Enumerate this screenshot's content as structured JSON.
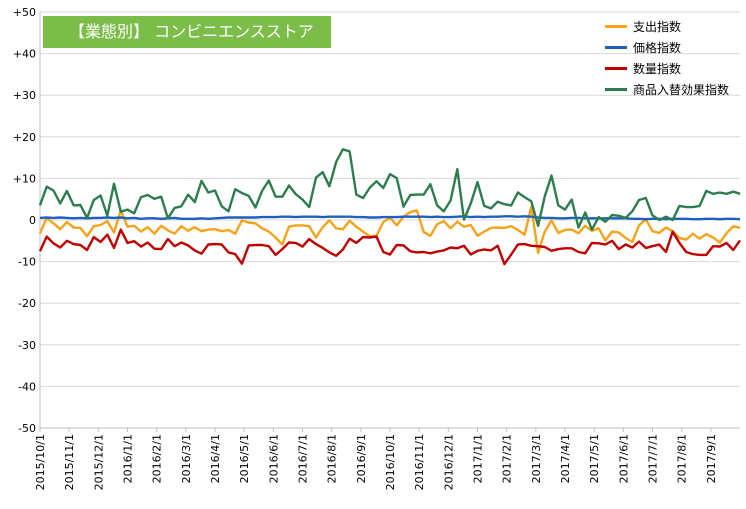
{
  "chart_data": {
    "type": "line",
    "title": "【業態別】 コンビニエンスストア",
    "xlabel": "",
    "ylabel": "",
    "ylim": [
      -50,
      50
    ],
    "y_ticks": [
      "+50",
      "+40",
      "+30",
      "+20",
      "+10",
      "0",
      "-10",
      "-20",
      "-30",
      "-40",
      "-50"
    ],
    "x_tick_labels": [
      "2015/10/1",
      "2015/11/1",
      "2015/12/1",
      "2016/1/1",
      "2016/2/1",
      "2016/3/1",
      "2016/4/1",
      "2016/5/1",
      "2016/6/1",
      "2016/7/1",
      "2016/8/1",
      "2016/9/1",
      "2016/10/1",
      "2016/11/1",
      "2016/12/1",
      "2017/1/1",
      "2017/2/1",
      "2017/3/1",
      "2017/4/1",
      "2017/5/1",
      "2017/6/1",
      "2017/7/1",
      "2017/8/1",
      "2017/9/1"
    ],
    "x_note": "weekly observations from 2015/10/1 to 2017/9/30; 105 points per series",
    "legend_position": "top-right",
    "grid": "horizontal",
    "series": [
      {
        "name": "支出指数",
        "color": "#f5a31a",
        "values": [
          -3.2,
          0.5,
          -0.8,
          -2.2,
          -0.5,
          -1.8,
          -1.9,
          -3.9,
          -1.5,
          -1.2,
          -0.3,
          -3.0,
          2.3,
          -1.6,
          -1.4,
          -2.8,
          -1.7,
          -3.3,
          -1.4,
          -2.5,
          -3.3,
          -1.5,
          -2.6,
          -1.7,
          -2.7,
          -2.3,
          -2.2,
          -2.7,
          -2.4,
          -3.3,
          -0.1,
          -0.6,
          -0.8,
          -2.0,
          -2.8,
          -4.2,
          -5.9,
          -1.6,
          -1.3,
          -1.3,
          -1.5,
          -4.2,
          -1.7,
          -0.1,
          -2.0,
          -2.2,
          -0.2,
          -1.6,
          -2.8,
          -3.9,
          -3.8,
          -0.5,
          0.6,
          -1.3,
          0.8,
          1.9,
          2.3,
          -2.9,
          -3.8,
          -1.0,
          -0.3,
          -2.0,
          -0.4,
          -1.6,
          -1.2,
          -3.8,
          -2.8,
          -1.9,
          -1.8,
          -1.9,
          -1.5,
          -2.4,
          -3.5,
          3.2,
          -7.9,
          -2.8,
          -0.1,
          -3.1,
          -2.4,
          -2.3,
          -3.2,
          -1.4,
          -2.6,
          -2.0,
          -4.9,
          -2.8,
          -3.0,
          -4.3,
          -5.3,
          -1.3,
          0.2,
          -2.7,
          -3.1,
          -1.8,
          -2.7,
          -4.3,
          -4.7,
          -3.3,
          -4.5,
          -3.4,
          -4.2,
          -5.4,
          -3.2,
          -1.5,
          -1.9
        ]
      },
      {
        "name": "価格指数",
        "color": "#1f5fbf",
        "values": [
          0.5,
          0.6,
          0.5,
          0.6,
          0.5,
          0.4,
          0.5,
          0.4,
          0.5,
          0.5,
          0.6,
          0.5,
          0.6,
          0.4,
          0.5,
          0.3,
          0.4,
          0.4,
          0.3,
          0.4,
          0.5,
          0.3,
          0.3,
          0.3,
          0.4,
          0.3,
          0.4,
          0.5,
          0.6,
          0.6,
          0.6,
          0.6,
          0.6,
          0.7,
          0.7,
          0.7,
          0.8,
          0.8,
          0.7,
          0.8,
          0.8,
          0.8,
          0.7,
          0.8,
          0.8,
          0.8,
          0.8,
          0.7,
          0.7,
          0.6,
          0.6,
          0.7,
          0.7,
          0.7,
          0.8,
          0.8,
          0.8,
          0.8,
          0.7,
          0.8,
          0.7,
          0.7,
          0.8,
          0.9,
          0.7,
          0.8,
          0.7,
          0.8,
          0.8,
          0.9,
          0.9,
          0.8,
          0.9,
          0.8,
          0.6,
          0.5,
          0.5,
          0.4,
          0.4,
          0.5,
          0.5,
          0.4,
          0.4,
          0.4,
          0.4,
          0.4,
          0.4,
          0.4,
          0.3,
          0.3,
          0.2,
          0.3,
          0.3,
          0.2,
          0.3,
          0.3,
          0.3,
          0.2,
          0.2,
          0.3,
          0.3,
          0.2,
          0.3,
          0.3,
          0.2
        ]
      },
      {
        "name": "数量指数",
        "color": "#c00000",
        "values": [
          -7.5,
          -4.0,
          -5.6,
          -6.6,
          -5.0,
          -5.8,
          -6.0,
          -7.2,
          -4.1,
          -5.3,
          -3.5,
          -6.7,
          -2.3,
          -5.5,
          -5.1,
          -6.4,
          -5.4,
          -6.9,
          -7.0,
          -4.6,
          -6.3,
          -5.4,
          -6.1,
          -7.3,
          -8.1,
          -5.9,
          -5.8,
          -5.9,
          -7.8,
          -8.2,
          -10.5,
          -6.1,
          -6.0,
          -6.0,
          -6.3,
          -8.4,
          -7.0,
          -5.4,
          -5.5,
          -6.4,
          -4.6,
          -5.8,
          -6.7,
          -7.8,
          -8.6,
          -7.1,
          -4.5,
          -5.5,
          -4.1,
          -4.2,
          -4.0,
          -7.7,
          -8.3,
          -6.0,
          -6.1,
          -7.5,
          -7.8,
          -7.7,
          -8.0,
          -7.6,
          -7.3,
          -6.6,
          -6.8,
          -6.2,
          -8.3,
          -7.4,
          -7.1,
          -7.3,
          -6.2,
          -10.6,
          -8.3,
          -5.9,
          -5.8,
          -6.2,
          -6.3,
          -6.5,
          -7.4,
          -7.0,
          -6.8,
          -6.8,
          -7.7,
          -8.0,
          -5.5,
          -5.6,
          -5.9,
          -5.0,
          -7.0,
          -5.9,
          -6.6,
          -5.2,
          -6.7,
          -6.3,
          -5.9,
          -7.7,
          -2.8,
          -5.5,
          -7.7,
          -8.2,
          -8.4,
          -8.4,
          -6.3,
          -6.4,
          -5.5,
          -7.2,
          -4.9
        ]
      },
      {
        "name": "商品入替効果指数",
        "color": "#2e7d4f",
        "values": [
          3.5,
          8.0,
          7.1,
          4.0,
          7.0,
          3.5,
          3.6,
          0.5,
          4.8,
          5.9,
          1.0,
          8.7,
          2.0,
          2.5,
          1.6,
          5.5,
          6.0,
          5.1,
          5.6,
          0.4,
          2.9,
          3.3,
          6.1,
          4.3,
          9.4,
          6.6,
          7.1,
          3.3,
          2.1,
          7.4,
          6.5,
          5.8,
          3.0,
          7.0,
          9.5,
          5.6,
          5.6,
          8.3,
          6.2,
          4.9,
          3.1,
          10.2,
          11.5,
          8.1,
          14.0,
          17.0,
          16.5,
          6.1,
          5.3,
          7.8,
          9.3,
          7.7,
          11.0,
          10.1,
          3.2,
          6.0,
          6.1,
          6.1,
          8.6,
          3.5,
          2.1,
          4.7,
          12.2,
          0.1,
          4.0,
          9.1,
          3.4,
          2.8,
          4.4,
          3.8,
          3.5,
          6.6,
          5.5,
          4.5,
          -1.4,
          5.7,
          10.7,
          3.5,
          2.5,
          4.9,
          -1.8,
          1.8,
          -2.3,
          0.7,
          -0.4,
          1.2,
          1.0,
          0.5,
          2.1,
          4.8,
          5.3,
          1.1,
          0.0,
          0.8,
          0.0,
          3.4,
          3.1,
          3.1,
          3.4,
          7.0,
          6.3,
          6.6,
          6.3,
          6.8,
          6.3
        ]
      }
    ]
  }
}
